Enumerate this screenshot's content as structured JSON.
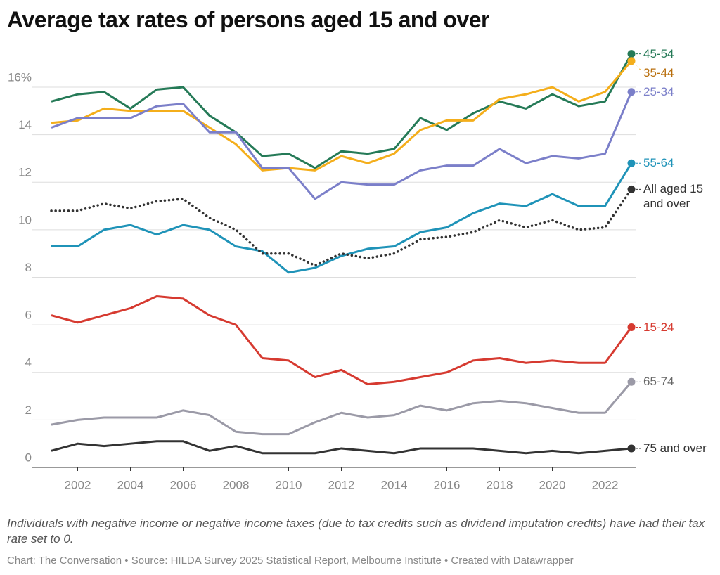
{
  "chart_data": {
    "type": "line",
    "title": "Average tax rates of persons aged 15 and over",
    "note": "Individuals with negative income or negative income taxes (due to tax credits such as dividend imputation credits) have had their tax rate set to 0.",
    "source": "Chart: The Conversation • Source: HILDA Survey 2025 Statistical Report, Melbourne Institute • Created with Datawrapper",
    "x": [
      2001,
      2002,
      2003,
      2004,
      2005,
      2006,
      2007,
      2008,
      2009,
      2010,
      2011,
      2012,
      2013,
      2014,
      2015,
      2016,
      2017,
      2018,
      2019,
      2020,
      2021,
      2022,
      2023
    ],
    "xlim": [
      2001,
      2023
    ],
    "xticks": [
      2002,
      2004,
      2006,
      2008,
      2010,
      2012,
      2014,
      2016,
      2018,
      2020,
      2022
    ],
    "ylim": [
      0,
      16
    ],
    "yticks": [
      0,
      2,
      4,
      6,
      8,
      10,
      12,
      14,
      {
        "value": 16,
        "label": "16%"
      }
    ],
    "grid": true,
    "series": [
      {
        "name": "45-54",
        "color": "#257a57",
        "values": [
          15.4,
          15.7,
          15.8,
          15.1,
          15.9,
          16.0,
          14.8,
          14.1,
          13.1,
          13.2,
          12.6,
          13.3,
          13.2,
          13.4,
          14.7,
          14.2,
          14.9,
          15.4,
          15.1,
          15.7,
          15.2,
          15.4,
          17.4
        ]
      },
      {
        "name": "35-44",
        "color": "#f4ae1b",
        "label_color": "#b86e0c",
        "values": [
          14.5,
          14.6,
          15.1,
          15.0,
          15.0,
          15.0,
          14.3,
          13.6,
          12.5,
          12.6,
          12.5,
          13.1,
          12.8,
          13.2,
          14.2,
          14.6,
          14.6,
          15.5,
          15.7,
          16.0,
          15.4,
          15.8,
          17.1
        ]
      },
      {
        "name": "25-34",
        "color": "#7b7fc9",
        "values": [
          14.3,
          14.7,
          14.7,
          14.7,
          15.2,
          15.3,
          14.1,
          14.1,
          12.6,
          12.6,
          11.3,
          12.0,
          11.9,
          11.9,
          12.5,
          12.7,
          12.7,
          13.4,
          12.8,
          13.1,
          13.0,
          13.2,
          15.8
        ]
      },
      {
        "name": "55-64",
        "color": "#1f93b8",
        "values": [
          9.3,
          9.3,
          10.0,
          10.2,
          9.8,
          10.2,
          10.0,
          9.3,
          9.1,
          8.2,
          8.4,
          8.9,
          9.2,
          9.3,
          9.9,
          10.1,
          10.7,
          11.1,
          11.0,
          11.5,
          11.0,
          11.0,
          12.8
        ]
      },
      {
        "name": "All aged 15 and over",
        "color": "#333333",
        "dash": "dotted",
        "values": [
          10.8,
          10.8,
          11.1,
          10.9,
          11.2,
          11.3,
          10.5,
          10.0,
          9.0,
          9.0,
          8.5,
          9.0,
          8.8,
          9.0,
          9.6,
          9.7,
          9.9,
          10.4,
          10.1,
          10.4,
          10.0,
          10.1,
          11.7
        ]
      },
      {
        "name": "15-24",
        "color": "#d63a30",
        "values": [
          6.4,
          6.1,
          6.4,
          6.7,
          7.2,
          7.1,
          6.4,
          6.0,
          4.6,
          4.5,
          3.8,
          4.1,
          3.5,
          3.6,
          3.8,
          4.0,
          4.5,
          4.6,
          4.4,
          4.5,
          4.4,
          4.4,
          5.9
        ]
      },
      {
        "name": "65-74",
        "color": "#9b9aa7",
        "label_color": "#666666",
        "values": [
          1.8,
          2.0,
          2.1,
          2.1,
          2.1,
          2.4,
          2.2,
          1.5,
          1.4,
          1.4,
          1.9,
          2.3,
          2.1,
          2.2,
          2.6,
          2.4,
          2.7,
          2.8,
          2.7,
          2.5,
          2.3,
          2.3,
          3.6
        ]
      },
      {
        "name": "75 and over",
        "color": "#333333",
        "values": [
          0.7,
          1.0,
          0.9,
          1.0,
          1.1,
          1.1,
          0.7,
          0.9,
          0.6,
          0.6,
          0.6,
          0.8,
          0.7,
          0.6,
          0.8,
          0.8,
          0.8,
          0.7,
          0.6,
          0.7,
          0.6,
          0.7,
          0.8
        ]
      }
    ]
  }
}
